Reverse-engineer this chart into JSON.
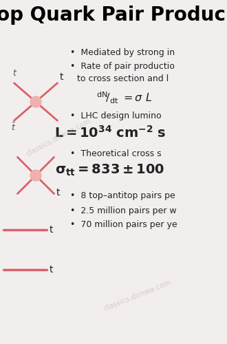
{
  "title": "op Quark Pair Produc",
  "bg_color": "#f2eeee",
  "title_color": "#000000",
  "title_fontsize": 20,
  "watermark1": "classics.dirnwa.com",
  "watermark2": "classics.dirnwa.com",
  "arrow_color": "#d9606a",
  "vertex_color": "#f0b0b0",
  "label_color": "#222222",
  "bullet_fs": 9.0,
  "formula_fs": 11.5,
  "bold_formula_fs": 14
}
